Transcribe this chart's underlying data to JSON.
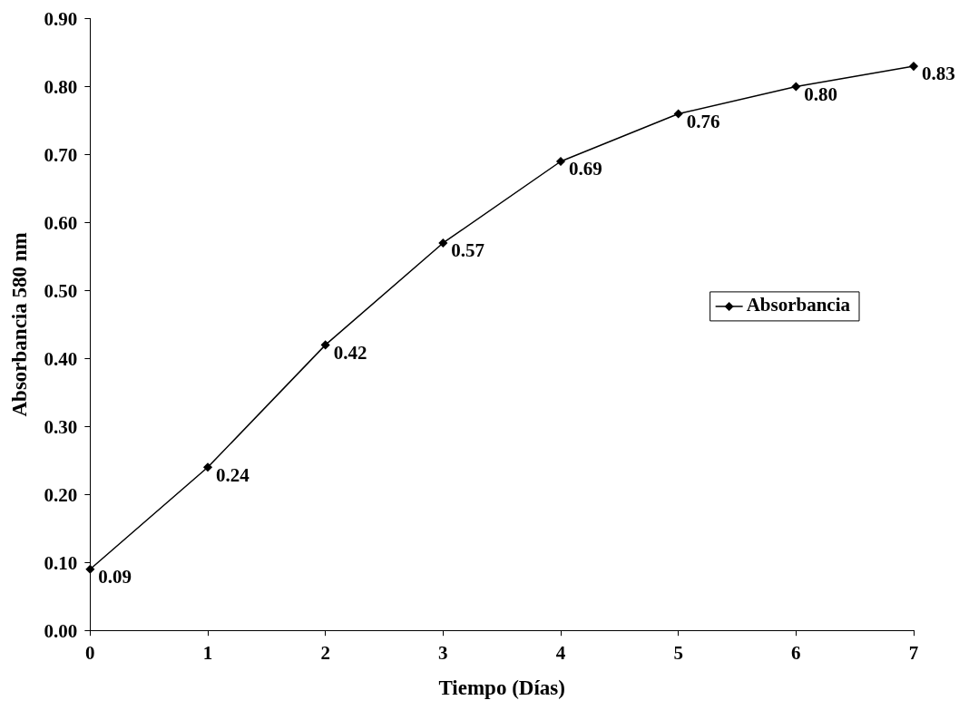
{
  "chart_data": {
    "type": "line",
    "xlabel": "Tiempo (Días)",
    "ylabel": "Absorbancia 580 nm",
    "x": [
      0,
      1,
      2,
      3,
      4,
      5,
      6,
      7
    ],
    "series": [
      {
        "name": "Absorbancia",
        "color": "#000000",
        "values": [
          0.09,
          0.24,
          0.42,
          0.57,
          0.69,
          0.76,
          0.8,
          0.83
        ],
        "value_labels": [
          "0.09",
          "0.24",
          "0.42",
          "0.57",
          "0.69",
          "0.76",
          "0.80",
          "0.83"
        ]
      }
    ],
    "xlim": [
      0,
      7
    ],
    "xticks": [
      0,
      1,
      2,
      3,
      4,
      5,
      6,
      7
    ],
    "ylim": [
      0,
      0.9
    ],
    "yticks": [
      {
        "value": 0,
        "label": "0.00"
      },
      {
        "value": 0.1,
        "label": "0.10"
      },
      {
        "value": 0.2,
        "label": "0.20"
      },
      {
        "value": 0.3,
        "label": "0.30"
      },
      {
        "value": 0.4,
        "label": "0.40"
      },
      {
        "value": 0.5,
        "label": "0.50"
      },
      {
        "value": 0.6,
        "label": "0.60"
      },
      {
        "value": 0.7,
        "label": "0.70"
      },
      {
        "value": 0.8,
        "label": "0.80"
      },
      {
        "value": 0.9,
        "label": "0.90"
      }
    ],
    "grid": false,
    "legend": "right",
    "marker": "diamond",
    "line_style": "solid"
  }
}
